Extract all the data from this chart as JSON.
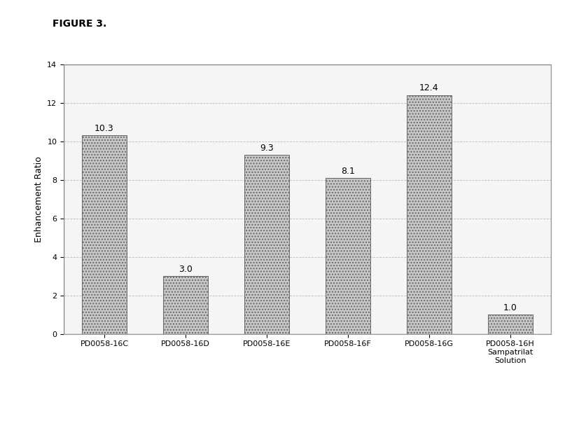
{
  "categories": [
    "PD0058-16C",
    "PD0058-16D",
    "PD0058-16E",
    "PD0058-16F",
    "PD0058-16G",
    "PD0058-16H\nSampatrilat\nSolution"
  ],
  "values": [
    10.3,
    3.0,
    9.3,
    8.1,
    12.4,
    1.0
  ],
  "labels": [
    "10.3",
    "3.0",
    "9.3",
    "8.1",
    "12.4",
    "1.0"
  ],
  "ylabel": "Enhancement Ratio",
  "ylim": [
    0,
    14
  ],
  "yticks": [
    0,
    2,
    4,
    6,
    8,
    10,
    12,
    14
  ],
  "title": "FIGURE 3.",
  "bar_facecolor": "#c8c8c8",
  "bar_edgecolor": "#666666",
  "hatch": "....",
  "plot_bg": "#f5f5f5",
  "figure_bg": "#ffffff",
  "outer_box_color": "#aaaaaa",
  "grid_color": "#bbbbbb",
  "label_fontsize": 9,
  "tick_fontsize": 8,
  "title_fontsize": 10,
  "ylabel_fontsize": 9,
  "bar_width": 0.55
}
